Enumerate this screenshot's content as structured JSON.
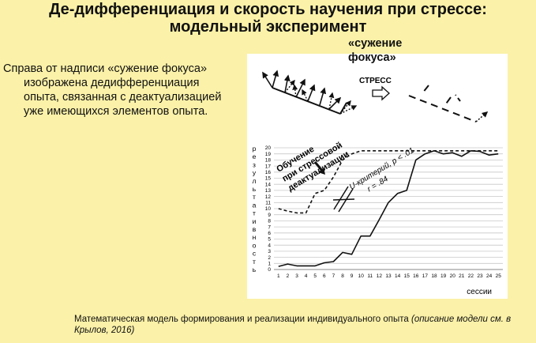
{
  "slide": {
    "title_line1": "Де-дифференциация и скорость научения при стрессе:",
    "title_line2": "модельный эксперимент",
    "side_text_line1": "Справа от надписи «сужение фокуса»",
    "side_text_line2": "изображена дедифференциация",
    "side_text_line3": "опыта, связанная с деактуализацией",
    "side_text_line4": "уже имеющихся элементов опыта.",
    "focus_label_line1": "«сужение",
    "focus_label_line2": "фокуса»",
    "stress_label": "СТРЕСС",
    "caption_main": "Математическая модель формирования и реализации индивидуального опыта ",
    "caption_italic": "(описание модели см. в Крылов, 2016)"
  },
  "chart_data": {
    "type": "line",
    "x": [
      1,
      2,
      3,
      4,
      5,
      6,
      7,
      8,
      9,
      10,
      11,
      12,
      13,
      14,
      15,
      16,
      17,
      18,
      19,
      20,
      21,
      22,
      23,
      24,
      25
    ],
    "xlabel": "сессии",
    "ylabel_letters": [
      "р",
      "е",
      "з",
      "у",
      "л",
      "ь",
      "т",
      "а",
      "т",
      "и",
      "в",
      "н",
      "о",
      "с",
      "т",
      "ь"
    ],
    "ylim": [
      0,
      20
    ],
    "yticks": [
      0,
      1,
      2,
      3,
      4,
      5,
      6,
      7,
      8,
      9,
      10,
      11,
      12,
      13,
      14,
      15,
      16,
      17,
      18,
      19,
      20
    ],
    "grid": true,
    "series": [
      {
        "style": "dashed",
        "values": [
          10,
          9.6,
          9.3,
          9.3,
          12.5,
          13,
          15.2,
          18,
          19,
          19.5,
          19.5,
          19.5,
          19.5,
          19.5,
          19.5,
          19.5,
          19.5,
          19.5,
          19.5,
          19.5,
          19.5,
          19.5,
          19.5,
          19.5,
          19.5
        ]
      },
      {
        "style": "solid",
        "values": [
          0.5,
          0.9,
          0.6,
          0.6,
          0.6,
          1.1,
          1.3,
          2.8,
          2.5,
          5.5,
          5.5,
          8.2,
          11,
          12.5,
          13,
          18,
          19,
          19.5,
          19,
          19.2,
          18.6,
          19.5,
          19.4,
          18.8,
          19
        ]
      }
    ],
    "annotations": {
      "stress_line1": "Обучение",
      "stress_line2": "при стрессовой",
      "stress_line3": "деактуализации",
      "stat_line1": "U-критерий, p < .01",
      "stat_line2": "r = .84"
    }
  }
}
